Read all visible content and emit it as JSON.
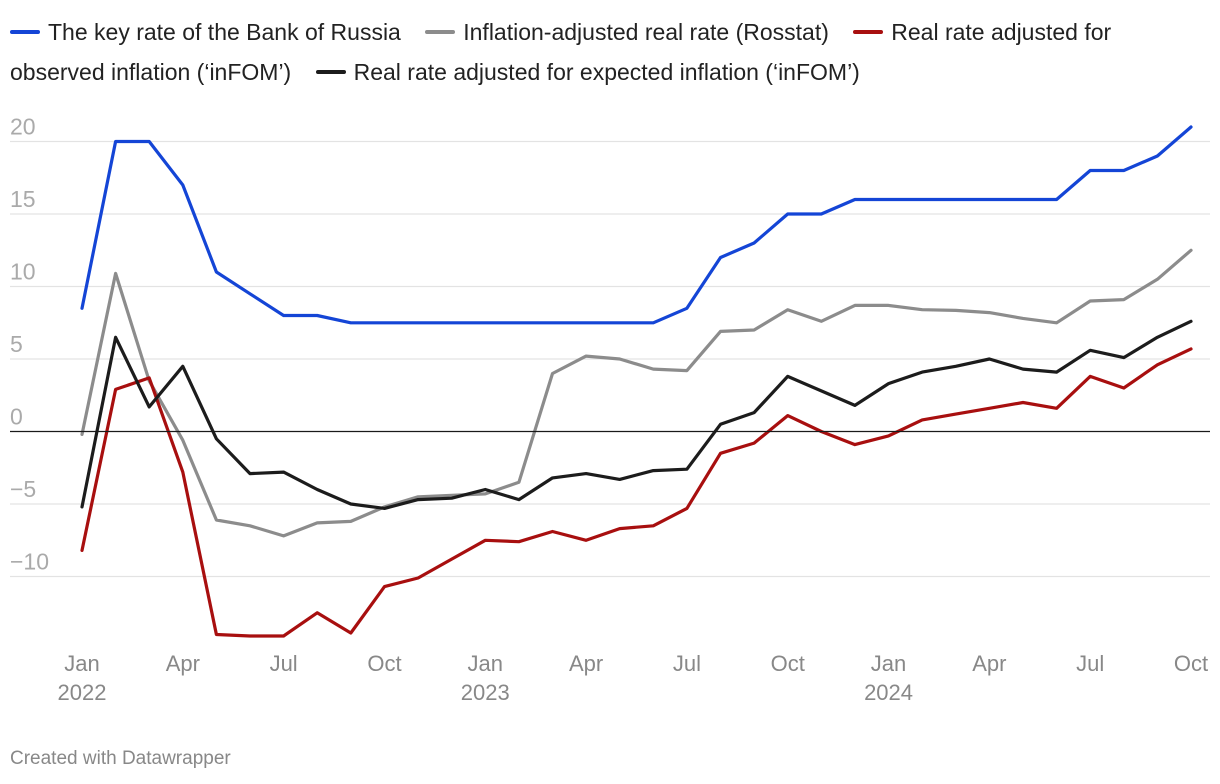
{
  "chart_data": {
    "type": "line",
    "title": "",
    "xlabel": "",
    "ylabel": "",
    "ylim": [
      -16,
      21
    ],
    "y_ticks": [
      20,
      15,
      10,
      5,
      0,
      -5,
      -10
    ],
    "x": [
      "2022-01",
      "2022-02",
      "2022-03",
      "2022-04",
      "2022-05",
      "2022-06",
      "2022-07",
      "2022-08",
      "2022-09",
      "2022-10",
      "2022-11",
      "2022-12",
      "2023-01",
      "2023-02",
      "2023-03",
      "2023-04",
      "2023-05",
      "2023-06",
      "2023-07",
      "2023-08",
      "2023-09",
      "2023-10",
      "2023-11",
      "2023-12",
      "2024-01",
      "2024-02",
      "2024-03",
      "2024-04",
      "2024-05",
      "2024-06",
      "2024-07",
      "2024-08",
      "2024-09",
      "2024-10"
    ],
    "x_tick_labels": [
      {
        "index": 0,
        "month": "Jan",
        "year": "2022"
      },
      {
        "index": 3,
        "month": "Apr",
        "year": ""
      },
      {
        "index": 6,
        "month": "Jul",
        "year": ""
      },
      {
        "index": 9,
        "month": "Oct",
        "year": ""
      },
      {
        "index": 12,
        "month": "Jan",
        "year": "2023"
      },
      {
        "index": 15,
        "month": "Apr",
        "year": ""
      },
      {
        "index": 18,
        "month": "Jul",
        "year": ""
      },
      {
        "index": 21,
        "month": "Oct",
        "year": ""
      },
      {
        "index": 24,
        "month": "Jan",
        "year": "2024"
      },
      {
        "index": 27,
        "month": "Apr",
        "year": ""
      },
      {
        "index": 30,
        "month": "Jul",
        "year": ""
      },
      {
        "index": 33,
        "month": "Oct",
        "year": ""
      }
    ],
    "series": [
      {
        "name": "The key rate of the Bank of Russia",
        "color": "#1445d6",
        "values": [
          8.5,
          20,
          20,
          17,
          11,
          9.5,
          8,
          8,
          7.5,
          7.5,
          7.5,
          7.5,
          7.5,
          7.5,
          7.5,
          7.5,
          7.5,
          7.5,
          8.5,
          12,
          13,
          15,
          15,
          16,
          16,
          16,
          16,
          16,
          16,
          16,
          18,
          18,
          19,
          21
        ]
      },
      {
        "name": "Inflation-adjusted real rate (Rosstat)",
        "color": "#8c8c8c",
        "values": [
          -0.2,
          10.9,
          3.5,
          -0.6,
          -6.1,
          -6.5,
          -7.2,
          -6.3,
          -6.2,
          -5.2,
          -4.5,
          -4.4,
          -4.3,
          -3.5,
          4.0,
          5.2,
          5.0,
          4.3,
          4.2,
          6.9,
          7.0,
          8.4,
          7.6,
          8.7,
          8.7,
          8.4,
          8.35,
          8.2,
          7.8,
          7.5,
          9.0,
          9.1,
          10.5,
          12.5
        ]
      },
      {
        "name": "Real rate adjusted for observed inflation (‘inFOM’)",
        "color": "#a80f0f",
        "values": [
          -8.2,
          2.9,
          3.7,
          -2.8,
          -14.0,
          -14.1,
          -14.1,
          -12.5,
          -13.9,
          -10.7,
          -10.1,
          -8.8,
          -7.5,
          -7.6,
          -6.9,
          -7.5,
          -6.7,
          -6.5,
          -5.3,
          -1.5,
          -0.8,
          1.1,
          0.0,
          -0.9,
          -0.3,
          0.8,
          1.2,
          1.6,
          2.0,
          1.6,
          3.8,
          3.0,
          4.6,
          5.7
        ]
      },
      {
        "name": "Real rate adjusted for expected inflation (‘inFOM’)",
        "color": "#1c1c1c",
        "values": [
          -5.2,
          6.5,
          1.7,
          4.5,
          -0.5,
          -2.9,
          -2.8,
          -4.0,
          -5.0,
          -5.3,
          -4.7,
          -4.6,
          -4.0,
          -4.7,
          -3.2,
          -2.9,
          -3.3,
          -2.7,
          -2.6,
          0.5,
          1.3,
          3.8,
          2.8,
          1.8,
          3.3,
          4.1,
          4.5,
          5.0,
          4.3,
          4.1,
          5.6,
          5.1,
          6.5,
          7.6
        ]
      }
    ]
  },
  "legend": [
    {
      "label": "The key rate of the Bank of Russia",
      "color": "#1445d6"
    },
    {
      "label": "Inflation-adjusted real rate (Rosstat)",
      "color": "#8c8c8c"
    },
    {
      "label": "Real rate adjusted for observed inflation (‘inFOM’)",
      "color": "#a80f0f"
    },
    {
      "label": "Real rate adjusted for expected inflation (‘inFOM’)",
      "color": "#1c1c1c"
    }
  ],
  "footer": {
    "credit": "Created with Datawrapper"
  }
}
